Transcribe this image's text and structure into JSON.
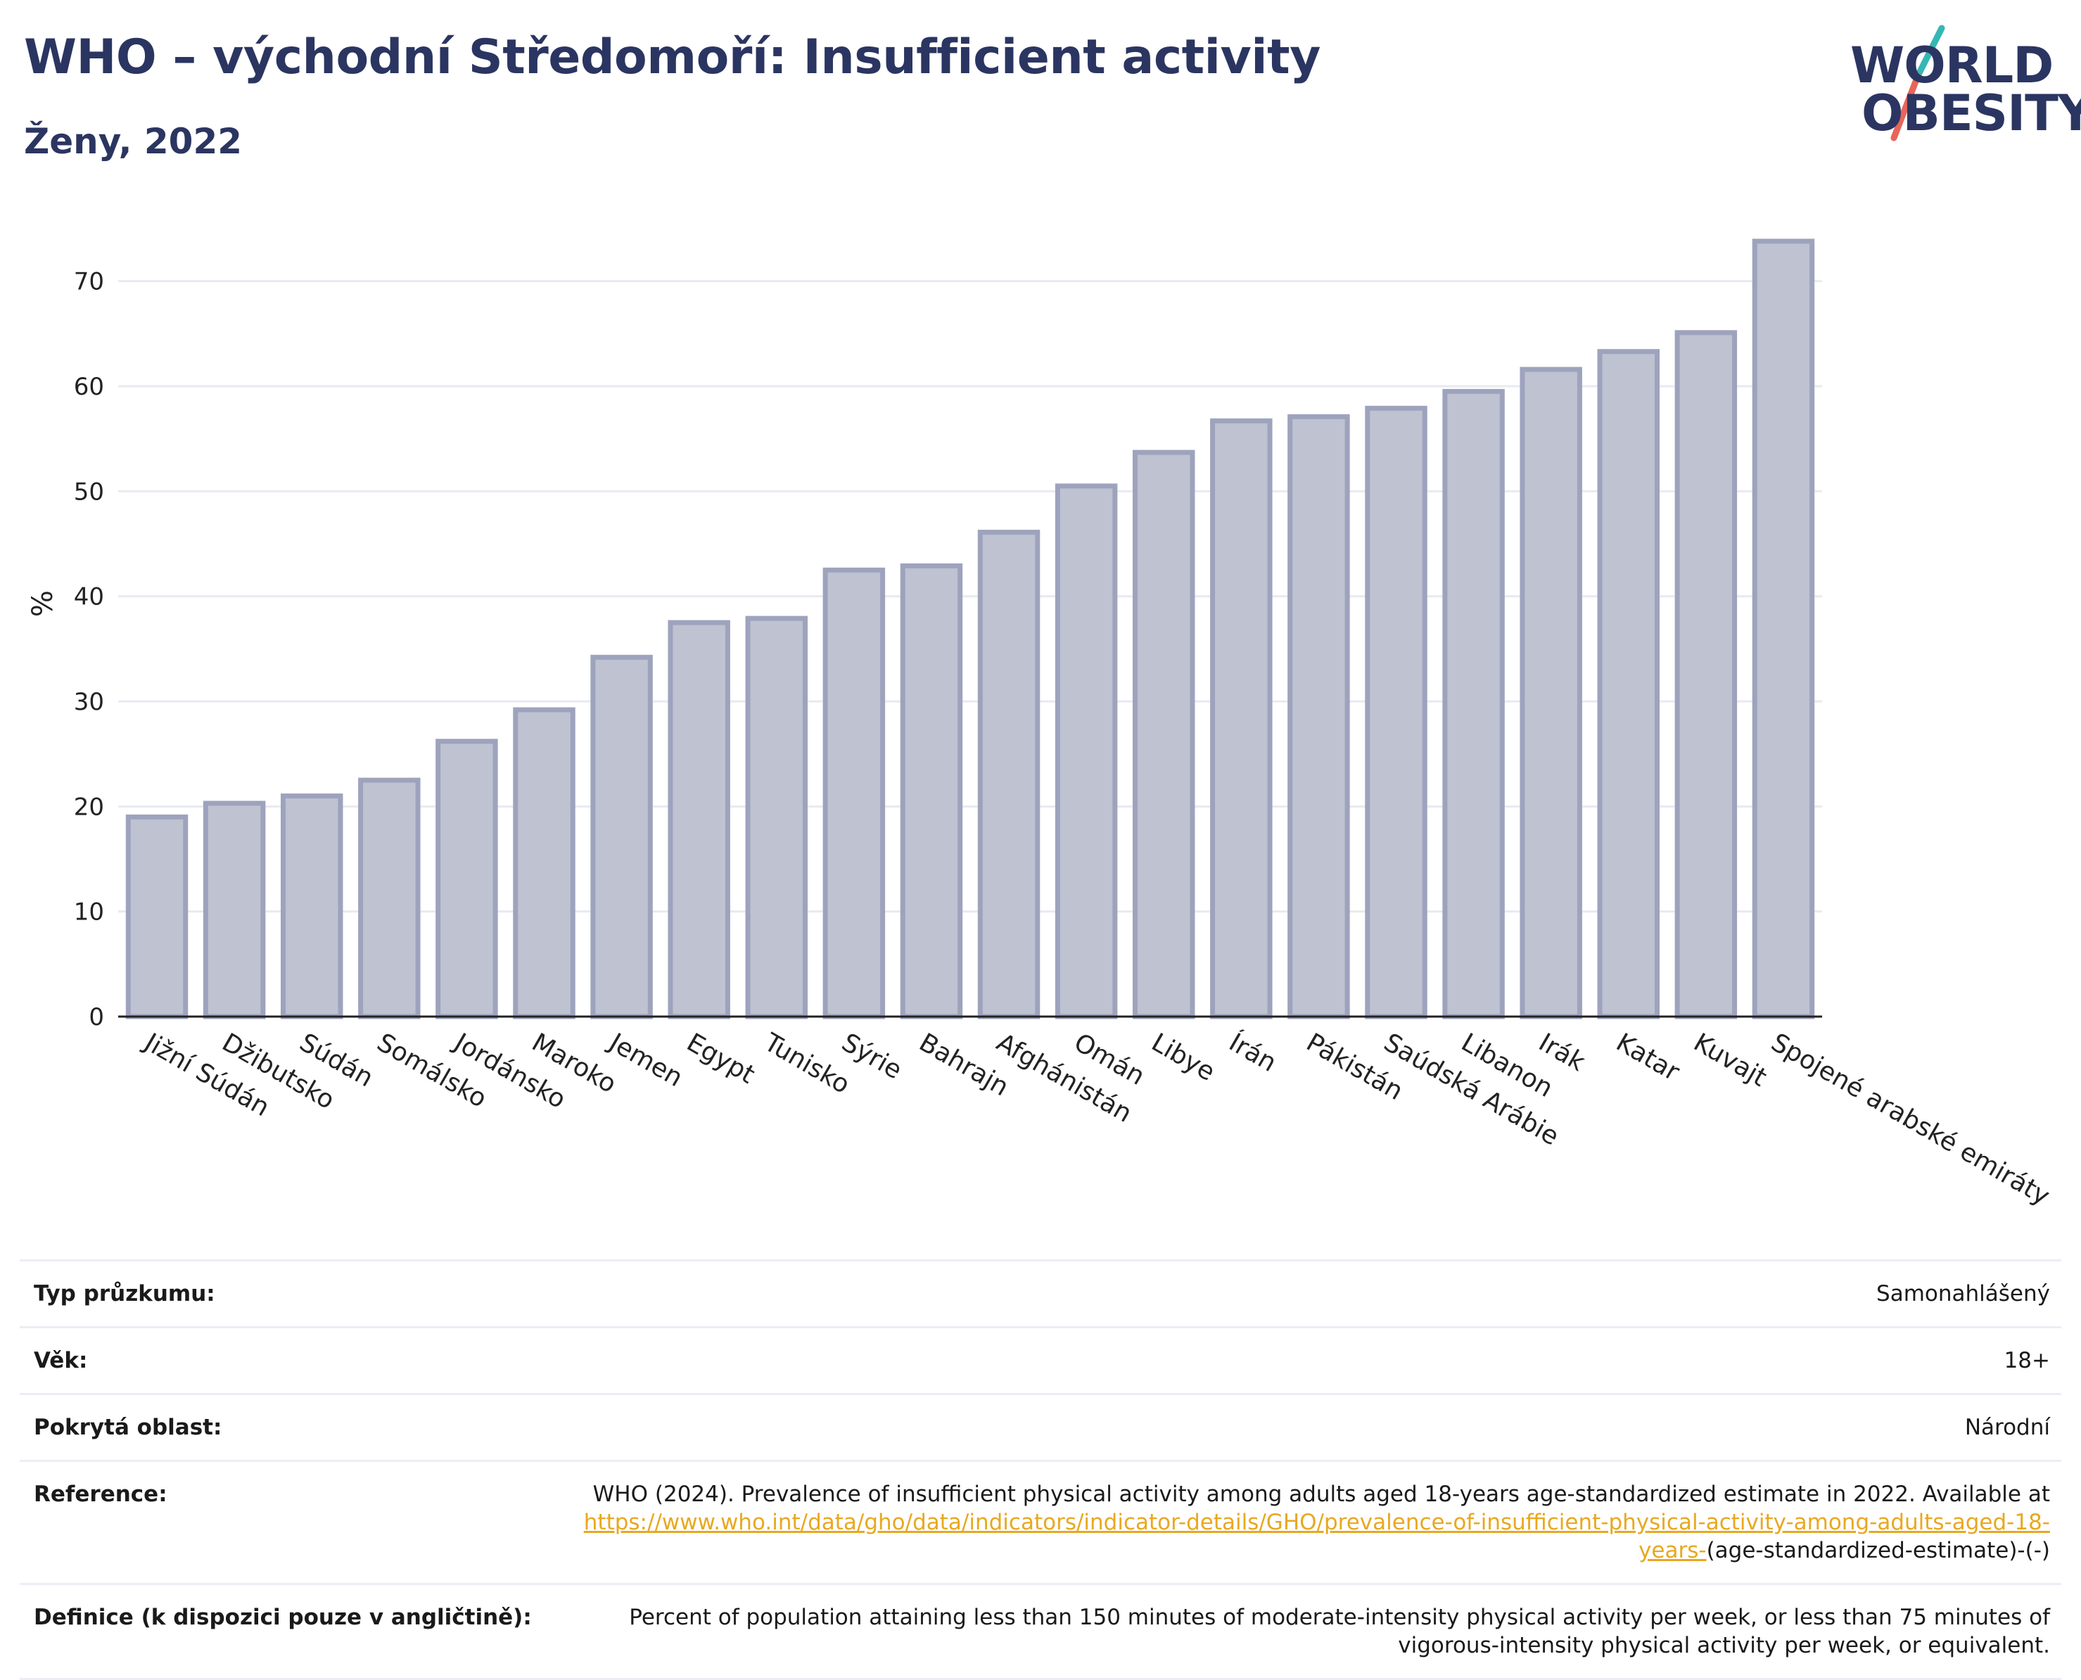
{
  "header": {
    "title": "WHO – východní Středomoří: Insufficient activity",
    "subtitle": "Ženy, 2022"
  },
  "logo": {
    "line1": "WORLD",
    "line2": "OBESITY",
    "accent_teal": "#35b7b5",
    "accent_coral": "#e8655a"
  },
  "chart_data": {
    "type": "bar",
    "title": "WHO – východní Středomoří: Insufficient activity",
    "subtitle": "Ženy, 2022",
    "ylabel": "%",
    "xlabel": "",
    "ylim": [
      0,
      76
    ],
    "yticks": [
      0,
      10,
      20,
      30,
      40,
      50,
      60,
      70
    ],
    "grid": true,
    "bar_fill": "#bec2d1",
    "bar_stroke": "#9ea3bd",
    "categories": [
      "Jižní Súdán",
      "Džibutsko",
      "Súdán",
      "Somálsko",
      "Jordánsko",
      "Maroko",
      "Jemen",
      "Egypt",
      "Tunisko",
      "Sýrie",
      "Bahrajn",
      "Afghánistán",
      "Omán",
      "Libye",
      "Írán",
      "Pákistán",
      "Saúdská Arábie",
      "Libanon",
      "Irák",
      "Katar",
      "Kuvajt",
      "Spojené arabské emiráty"
    ],
    "values": [
      19.0,
      20.3,
      21.0,
      22.5,
      26.2,
      29.2,
      34.2,
      37.5,
      37.9,
      42.5,
      42.9,
      46.1,
      50.5,
      53.7,
      56.7,
      57.1,
      57.9,
      59.5,
      61.6,
      63.3,
      65.1,
      73.8
    ]
  },
  "info": {
    "survey_label": "Typ průzkumu:",
    "survey_value": "Samonahlášený",
    "age_label": "Věk:",
    "age_value": "18+",
    "area_label": "Pokrytá oblast:",
    "area_value": "Národní",
    "ref_label": "Reference:",
    "ref_text": "WHO (2024). Prevalence of insufficient physical activity among adults aged 18-years age-standardized estimate in 2022. Available at",
    "ref_link": "https://www.who.int/data/gho/data/indicators/indicator-details/GHO/prevalence-of-insufficient-physical-activity-among-adults-aged-18-years-",
    "ref_tail": "(age-standardized-estimate)-(-)",
    "def_label": "Definice (k dispozici pouze v angličtině):",
    "def_value": "Percent of population attaining less than 150 minutes of moderate-intensity physical activity per week, or less than 75 minutes of vigorous-intensity physical activity per week, or equivalent."
  }
}
